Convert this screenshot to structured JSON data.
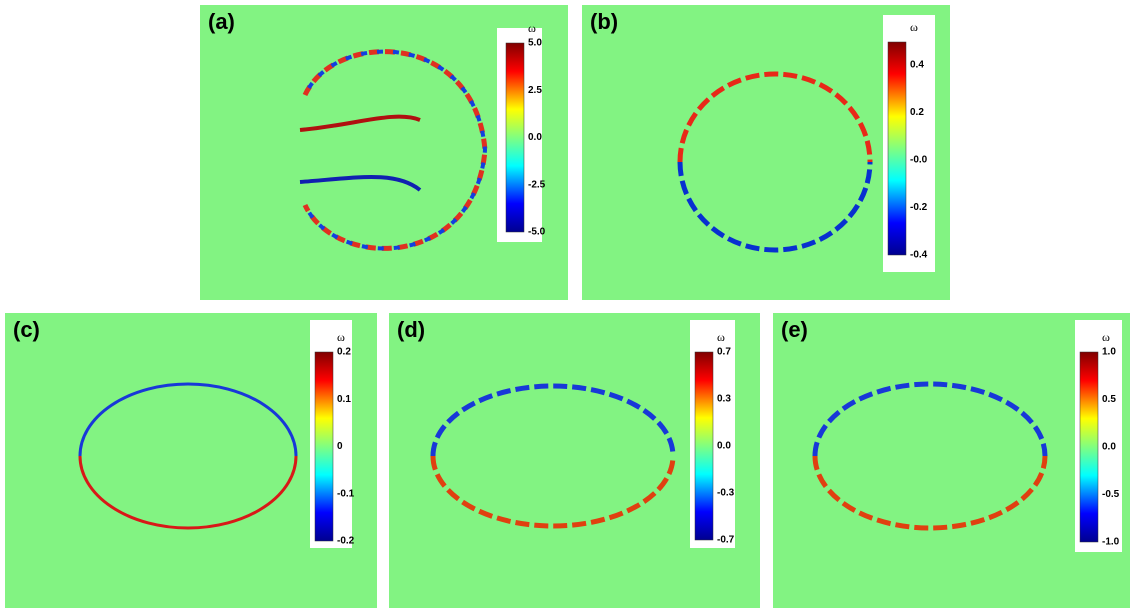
{
  "panels": [
    {
      "label": "(a)",
      "colorbar": {
        "title": "ω",
        "ticks": [
          "5.0",
          "2.5",
          "0.0",
          "-2.5",
          "-5.0"
        ]
      }
    },
    {
      "label": "(b)",
      "colorbar": {
        "title": "ω",
        "ticks": [
          "0.4",
          "0.2",
          "-0.0",
          "-0.2",
          "-0.4"
        ]
      }
    },
    {
      "label": "(c)",
      "colorbar": {
        "title": "ω",
        "ticks": [
          "0.2",
          "0.1",
          "0",
          "-0.1",
          "-0.2"
        ]
      }
    },
    {
      "label": "(d)",
      "colorbar": {
        "title": "ω",
        "ticks": [
          "0.7",
          "0.3",
          "0.0",
          "-0.3",
          "-0.7"
        ]
      }
    },
    {
      "label": "(e)",
      "colorbar": {
        "title": "ω",
        "ticks": [
          "1.0",
          "0.5",
          "0.0",
          "-0.5",
          "-1.0"
        ]
      }
    }
  ]
}
